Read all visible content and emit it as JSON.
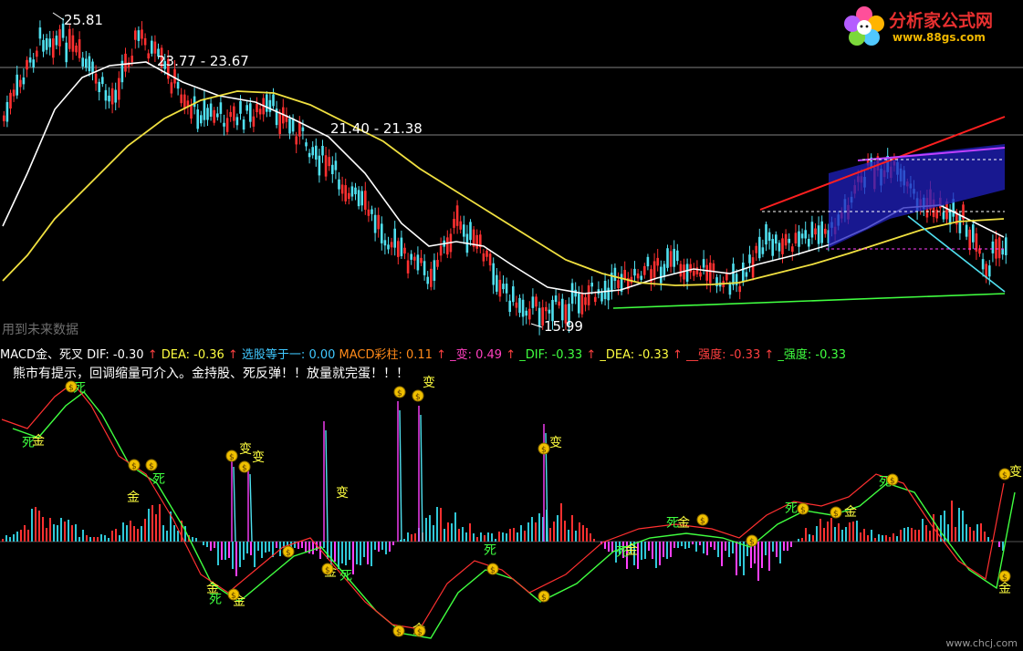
{
  "logo": {
    "name": "分析家公式网",
    "url": "www.88gs.com"
  },
  "watermark": "用到未来数据",
  "footer_url": "www.chcj.com",
  "price_panel": {
    "high_label": "25.81",
    "low_label": "15.99",
    "line1_label": "23.77 - 23.67",
    "line2_label": "21.40 - 21.38"
  },
  "indicator_bar": [
    {
      "text": "MACD金、死叉",
      "color": "#ffffff"
    },
    {
      "text": " DIF: -0.30",
      "color": "#ffffff",
      "arrow": "↑",
      "arrow_color": "#ff4040"
    },
    {
      "text": "  DEA: -0.36",
      "color": "#ffff40",
      "arrow": "↑",
      "arrow_color": "#ff4040"
    },
    {
      "text": "  选股等于一: 0.00",
      "color": "#40c8ff"
    },
    {
      "text": "  MACD彩柱: 0.11",
      "color": "#ff8a1a",
      "arrow": "↑",
      "arrow_color": "#ff4040"
    },
    {
      "text": "  _变: 0.49",
      "color": "#ff40c0",
      "arrow": "↑",
      "arrow_color": "#ff4040"
    },
    {
      "text": "  _DIF: -0.33",
      "color": "#40ff40",
      "arrow": "↑",
      "arrow_color": "#ff4040"
    },
    {
      "text": "  _DEA: -0.33",
      "color": "#ffff40",
      "arrow": "↑",
      "arrow_color": "#ff4040"
    },
    {
      "text": "  __强度: -0.33",
      "color": "#ff4040",
      "arrow": "↑",
      "arrow_color": "#ff4040"
    },
    {
      "text": "  _强度: -0.33",
      "color": "#40ff40"
    }
  ],
  "note": "熊市有提示，回调缩量可介入。金持股、死反弹！！放量就完蛋！！！",
  "signal_labels": {
    "gold": "金",
    "death": "死",
    "change": "变"
  },
  "colors": {
    "up": "#ff3030",
    "down": "#50e0f0",
    "ma_short": "#ffffff",
    "ma_long": "#f0e040",
    "dif": "#ff3030",
    "dea": "#40ff40",
    "hist_pos_a": "#ff3030",
    "hist_pos_b": "#30c8d8",
    "hist_neg_a": "#ff40ff",
    "hist_neg_b": "#30c8d8",
    "channel": "#2020c0",
    "grid": "#808080"
  }
}
